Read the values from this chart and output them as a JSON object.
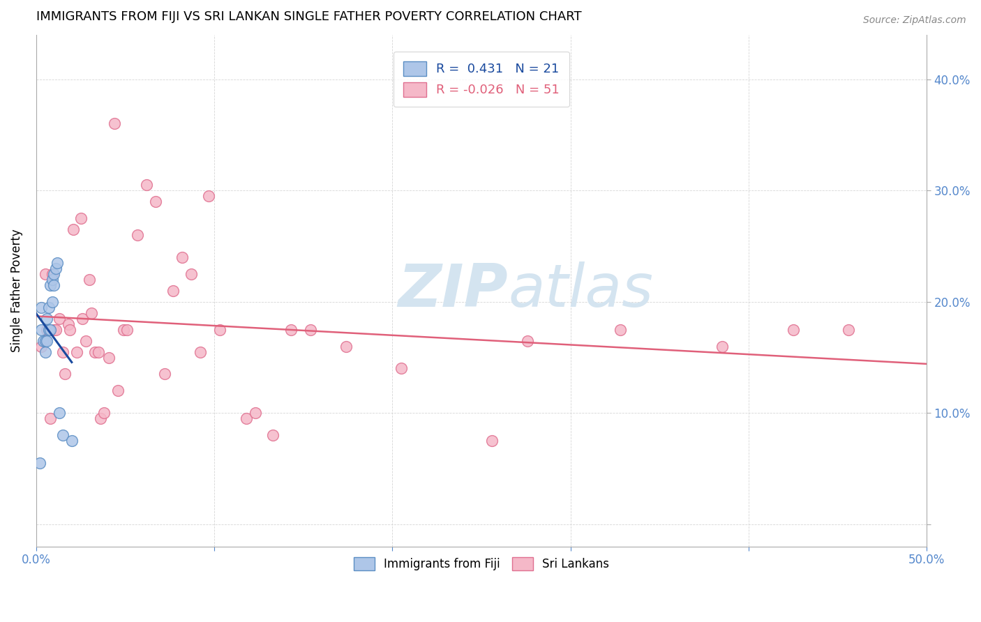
{
  "title": "IMMIGRANTS FROM FIJI VS SRI LANKAN SINGLE FATHER POVERTY CORRELATION CHART",
  "source": "Source: ZipAtlas.com",
  "ylabel": "Single Father Poverty",
  "x_lim": [
    0.0,
    0.5
  ],
  "y_lim": [
    -0.02,
    0.44
  ],
  "fiji_R": 0.431,
  "fiji_N": 21,
  "srilanka_R": -0.026,
  "srilanka_N": 51,
  "fiji_color": "#aec6e8",
  "fiji_edge_color": "#5b8ec4",
  "srilanka_color": "#f5b8c8",
  "srilanka_edge_color": "#e07090",
  "fiji_line_color": "#1a4a9e",
  "fiji_dash_color": "#7aaad4",
  "srilanka_line_color": "#e0607a",
  "watermark_zip": "ZIP",
  "watermark_atlas": "atlas",
  "watermark_color": "#d4e4f0",
  "fiji_x": [
    0.002,
    0.003,
    0.003,
    0.004,
    0.005,
    0.005,
    0.006,
    0.006,
    0.007,
    0.007,
    0.008,
    0.008,
    0.009,
    0.009,
    0.01,
    0.01,
    0.011,
    0.012,
    0.013,
    0.015,
    0.02
  ],
  "fiji_y": [
    0.055,
    0.175,
    0.195,
    0.165,
    0.155,
    0.165,
    0.165,
    0.185,
    0.175,
    0.195,
    0.175,
    0.215,
    0.2,
    0.22,
    0.215,
    0.225,
    0.23,
    0.235,
    0.1,
    0.08,
    0.075
  ],
  "srilanka_x": [
    0.003,
    0.005,
    0.006,
    0.008,
    0.009,
    0.01,
    0.011,
    0.013,
    0.015,
    0.016,
    0.018,
    0.019,
    0.021,
    0.023,
    0.025,
    0.026,
    0.028,
    0.03,
    0.031,
    0.033,
    0.035,
    0.036,
    0.038,
    0.041,
    0.044,
    0.046,
    0.049,
    0.051,
    0.057,
    0.062,
    0.067,
    0.072,
    0.077,
    0.082,
    0.087,
    0.092,
    0.097,
    0.103,
    0.118,
    0.123,
    0.133,
    0.143,
    0.154,
    0.174,
    0.205,
    0.256,
    0.276,
    0.328,
    0.385,
    0.425,
    0.456
  ],
  "srilanka_y": [
    0.16,
    0.225,
    0.175,
    0.095,
    0.225,
    0.175,
    0.175,
    0.185,
    0.155,
    0.135,
    0.18,
    0.175,
    0.265,
    0.155,
    0.275,
    0.185,
    0.165,
    0.22,
    0.19,
    0.155,
    0.155,
    0.095,
    0.1,
    0.15,
    0.36,
    0.12,
    0.175,
    0.175,
    0.26,
    0.305,
    0.29,
    0.135,
    0.21,
    0.24,
    0.225,
    0.155,
    0.295,
    0.175,
    0.095,
    0.1,
    0.08,
    0.175,
    0.175,
    0.16,
    0.14,
    0.075,
    0.165,
    0.175,
    0.16,
    0.175,
    0.175
  ]
}
